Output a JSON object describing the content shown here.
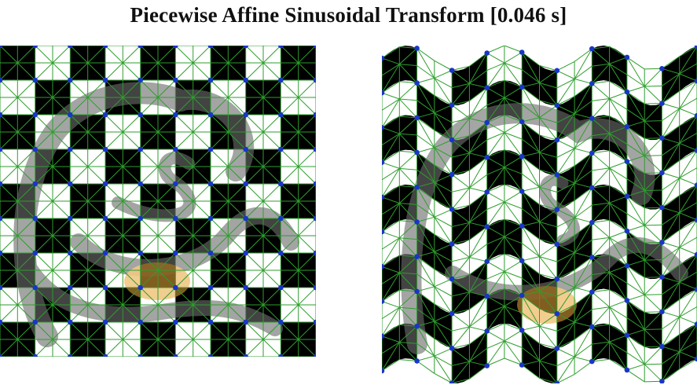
{
  "title": "Piecewise Affine Sinusoidal Transform [0.046 s]",
  "grid": {
    "cols": 9,
    "rows": 9,
    "mesh_step_fraction": 0.5
  },
  "warp": {
    "amplitude": 16,
    "periods": 3.2,
    "phase": 0.0
  },
  "colors": {
    "checker_dark": "#000000",
    "checker_light": "#ffffff",
    "mesh_edge": "#2e9e2e",
    "mesh_vertex": "#1a35c8",
    "watermark_gray": "#6d6d6d",
    "watermark_orange": "#e8a63a"
  },
  "icons": {
    "left": "original-checkerboard-image",
    "right": "warped-checkerboard-image",
    "watermark": "scikit-image-logo"
  }
}
